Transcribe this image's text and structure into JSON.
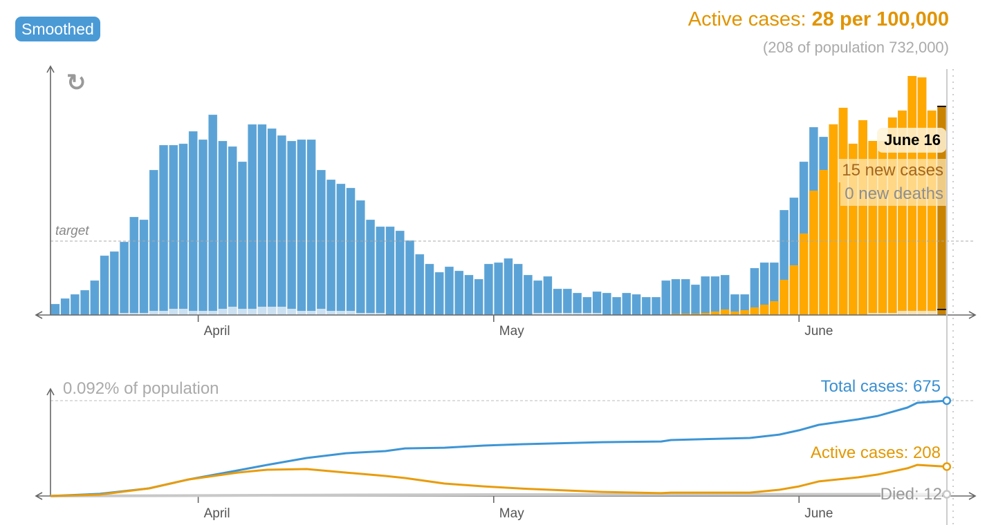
{
  "controls": {
    "smoothed_label": "Smoothed",
    "reload_icon": "reload-icon"
  },
  "header": {
    "active_prefix": "Active cases: ",
    "active_value": "28 per 100,000",
    "subtitle": "(208 of population 732,000)"
  },
  "tooltip": {
    "date": "June 16",
    "new_cases": "15 new cases",
    "new_deaths": "0 new deaths"
  },
  "colors": {
    "cases": "#5ba3d6",
    "active": "#ffa800",
    "selected": "#c98300",
    "deaths": "#dfe8f0",
    "total_line": "#3d95d5",
    "active_line": "#e89c0c",
    "died_line": "#c8c8c8"
  },
  "chart_data": [
    {
      "type": "bar",
      "title": "",
      "xlabel": "",
      "ylabel": "",
      "ylim": [
        0,
        18
      ],
      "x_ticks": [
        {
          "date": "Apr 1",
          "label": "April"
        },
        {
          "date": "May 1",
          "label": "May"
        },
        {
          "date": "Jun 1",
          "label": "June"
        }
      ],
      "target": {
        "label": "target",
        "value": 5.35
      },
      "selected": "Jun 16",
      "categories": [
        "Mar 18",
        "Mar 19",
        "Mar 20",
        "Mar 21",
        "Mar 22",
        "Mar 23",
        "Mar 24",
        "Mar 25",
        "Mar 26",
        "Mar 27",
        "Mar 28",
        "Mar 29",
        "Mar 30",
        "Mar 31",
        "Apr 1",
        "Apr 2",
        "Apr 3",
        "Apr 4",
        "Apr 5",
        "Apr 6",
        "Apr 7",
        "Apr 8",
        "Apr 9",
        "Apr 10",
        "Apr 11",
        "Apr 12",
        "Apr 13",
        "Apr 14",
        "Apr 15",
        "Apr 16",
        "Apr 17",
        "Apr 18",
        "Apr 19",
        "Apr 20",
        "Apr 21",
        "Apr 22",
        "Apr 23",
        "Apr 24",
        "Apr 25",
        "Apr 26",
        "Apr 27",
        "Apr 28",
        "Apr 29",
        "Apr 30",
        "May 1",
        "May 2",
        "May 3",
        "May 4",
        "May 5",
        "May 6",
        "May 7",
        "May 8",
        "May 9",
        "May 10",
        "May 11",
        "May 12",
        "May 13",
        "May 14",
        "May 15",
        "May 16",
        "May 17",
        "May 18",
        "May 19",
        "May 20",
        "May 21",
        "May 22",
        "May 23",
        "May 24",
        "May 25",
        "May 26",
        "May 27",
        "May 28",
        "May 29",
        "May 30",
        "May 31",
        "Jun 1",
        "Jun 2",
        "Jun 3",
        "Jun 4",
        "Jun 5",
        "Jun 6",
        "Jun 7",
        "Jun 8",
        "Jun 9",
        "Jun 10",
        "Jun 11",
        "Jun 12",
        "Jun 13",
        "Jun 14",
        "Jun 15",
        "Jun 16"
      ],
      "series": [
        {
          "key": "new_cases",
          "values": [
            0.8,
            1.2,
            1.5,
            1.8,
            2.5,
            4.3,
            4.6,
            5.3,
            7.1,
            6.9,
            10.5,
            12.3,
            12.3,
            12.4,
            13.3,
            12.7,
            14.5,
            12.6,
            12.2,
            11.1,
            13.8,
            13.8,
            13.5,
            13.0,
            12.6,
            12.7,
            12.7,
            10.5,
            9.8,
            9.5,
            9.2,
            8.3,
            6.9,
            6.4,
            6.4,
            6.1,
            5.4,
            4.4,
            3.7,
            3.1,
            3.5,
            3.2,
            2.9,
            2.6,
            3.7,
            3.8,
            4.1,
            3.7,
            2.9,
            2.5,
            2.8,
            1.9,
            1.9,
            1.6,
            1.3,
            1.7,
            1.6,
            1.3,
            1.6,
            1.5,
            1.3,
            1.3,
            2.5,
            2.6,
            2.6,
            2.2,
            2.8,
            2.8,
            2.9,
            1.5,
            1.5,
            3.4,
            3.8,
            3.8,
            7.6,
            8.5,
            11.1,
            13.6,
            12.9,
            13.8,
            15.0,
            12.4,
            14.1,
            12.6,
            12.6,
            14.3,
            14.8,
            17.3,
            17.2,
            14.8,
            15.1
          ]
        },
        {
          "key": "still_active",
          "values": [
            0,
            0,
            0,
            0,
            0,
            0,
            0,
            0,
            0,
            0,
            0,
            0,
            0,
            0,
            0,
            0,
            0,
            0,
            0,
            0,
            0,
            0,
            0,
            0,
            0,
            0,
            0,
            0,
            0,
            0,
            0,
            0,
            0,
            0,
            0,
            0,
            0,
            0,
            0,
            0,
            0,
            0,
            0,
            0,
            0,
            0,
            0,
            0,
            0,
            0,
            0,
            0,
            0,
            0,
            0,
            0,
            0,
            0,
            0,
            0,
            0,
            0,
            0.05,
            0.08,
            0.1,
            0.1,
            0.15,
            0.25,
            0.4,
            0.25,
            0.35,
            0.55,
            0.75,
            1.0,
            2.55,
            3.6,
            5.9,
            9.0,
            10.5,
            13.8,
            15.0,
            12.4,
            14.1,
            12.6,
            12.6,
            14.3,
            14.8,
            17.3,
            17.2,
            14.8,
            15.1
          ]
        },
        {
          "key": "new_deaths",
          "values": [
            0,
            0,
            0,
            0,
            0,
            0,
            0,
            0.15,
            0.15,
            0.15,
            0.3,
            0.3,
            0.45,
            0.45,
            0.3,
            0.3,
            0.3,
            0.45,
            0.6,
            0.45,
            0.45,
            0.6,
            0.6,
            0.6,
            0.45,
            0.3,
            0.3,
            0.45,
            0.3,
            0.3,
            0.3,
            0.15,
            0.15,
            0.15,
            0,
            0,
            0,
            0,
            0,
            0,
            0,
            0,
            0,
            0,
            0,
            0,
            0,
            0,
            0,
            0.15,
            0.15,
            0.15,
            0.15,
            0.15,
            0.15,
            0.15,
            0,
            0,
            0,
            0,
            0,
            0,
            0,
            0,
            0,
            0,
            0,
            0,
            0,
            0,
            0,
            0,
            0,
            0,
            0,
            0,
            0,
            0,
            0,
            0,
            0,
            0,
            0,
            0.15,
            0.15,
            0.15,
            0.3,
            0.3,
            0.3,
            0.3,
            0
          ]
        }
      ]
    },
    {
      "type": "line",
      "title": "",
      "ylim": [
        0,
        675
      ],
      "reference": {
        "label": "0.092% of population",
        "value": 675
      },
      "x_ticks": [
        {
          "date": "Apr 1",
          "label": "April"
        },
        {
          "date": "May 1",
          "label": "May"
        },
        {
          "date": "Jun 1",
          "label": "June"
        }
      ],
      "series": [
        {
          "name": "Total cases",
          "label": "Total cases: 675",
          "final": 675,
          "x": [
            "Mar 17",
            "Mar 22",
            "Mar 27",
            "Mar 31",
            "Apr 5",
            "Apr 8",
            "Apr 12",
            "Apr 16",
            "Apr 20",
            "Apr 22",
            "Apr 26",
            "Apr 30",
            "May 4",
            "May 12",
            "May 18",
            "May 19",
            "May 27",
            "May 30",
            "Jun 1",
            "Jun 3",
            "Jun 7",
            "Jun 9",
            "Jun 12",
            "Jun 13",
            "Jun 16"
          ],
          "y": [
            0,
            15,
            54,
            117,
            181,
            220,
            269,
            303,
            318,
            337,
            342,
            357,
            367,
            381,
            386,
            396,
            411,
            435,
            465,
            504,
            543,
            567,
            626,
            660,
            675
          ]
        },
        {
          "name": "Active cases",
          "label": "Active cases: 208",
          "final": 208,
          "x": [
            "Mar 17",
            "Mar 22",
            "Mar 27",
            "Mar 31",
            "Apr 5",
            "Apr 8",
            "Apr 12",
            "Apr 16",
            "Apr 20",
            "Apr 22",
            "Apr 26",
            "Apr 30",
            "May 4",
            "May 12",
            "May 18",
            "May 19",
            "May 27",
            "May 30",
            "Jun 1",
            "Jun 3",
            "Jun 7",
            "Jun 9",
            "Jun 12",
            "Jun 13",
            "Jun 16"
          ],
          "y": [
            0,
            10,
            54,
            117,
            166,
            186,
            191,
            166,
            142,
            127,
            88,
            68,
            52,
            29,
            20,
            24,
            24,
            44,
            68,
            103,
            132,
            152,
            196,
            220,
            208
          ]
        },
        {
          "name": "Died",
          "label": "Died: 12",
          "final": 12,
          "x": [
            "Mar 17",
            "Apr 1",
            "Apr 15",
            "May 1",
            "May 20",
            "Jun 16"
          ],
          "y": [
            0,
            3,
            7,
            10,
            11,
            12
          ]
        }
      ]
    }
  ]
}
